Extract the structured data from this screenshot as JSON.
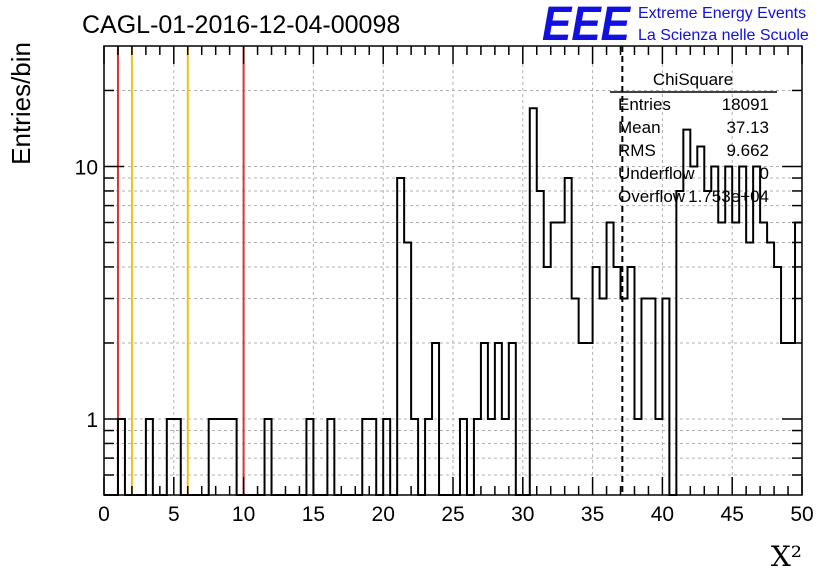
{
  "chart_data": {
    "type": "histogram",
    "title": "CAGL-01-2016-12-04-00098",
    "xlabel": "X²",
    "ylabel": "Entries/bin",
    "xlim": [
      0,
      50
    ],
    "ylim": [
      0.5,
      30
    ],
    "y_scale": "log",
    "grid": true,
    "bin_width": 0.5,
    "x_ticks": [
      "0",
      "5",
      "10",
      "15",
      "20",
      "25",
      "30",
      "35",
      "40",
      "45",
      "50"
    ],
    "y_ticks": [
      "1",
      "10"
    ],
    "bins": [
      [
        1.0,
        1
      ],
      [
        3.0,
        1
      ],
      [
        4.5,
        1
      ],
      [
        5.0,
        1
      ],
      [
        7.5,
        1
      ],
      [
        8.0,
        1
      ],
      [
        8.5,
        1
      ],
      [
        9.0,
        1
      ],
      [
        11.5,
        1
      ],
      [
        14.5,
        1
      ],
      [
        16.0,
        1
      ],
      [
        18.5,
        1
      ],
      [
        19.0,
        1
      ],
      [
        20.0,
        1
      ],
      [
        21.0,
        9
      ],
      [
        21.5,
        5
      ],
      [
        22.0,
        1
      ],
      [
        23.0,
        1
      ],
      [
        23.5,
        2
      ],
      [
        25.5,
        1
      ],
      [
        26.5,
        1
      ],
      [
        27.0,
        2
      ],
      [
        27.5,
        1
      ],
      [
        28.0,
        2
      ],
      [
        28.5,
        1
      ],
      [
        29.0,
        2
      ],
      [
        30.5,
        17
      ],
      [
        31.0,
        8
      ],
      [
        31.5,
        4
      ],
      [
        32.0,
        6
      ],
      [
        32.5,
        6
      ],
      [
        33.0,
        9
      ],
      [
        33.5,
        3
      ],
      [
        34.0,
        2
      ],
      [
        34.5,
        2
      ],
      [
        35.0,
        4
      ],
      [
        35.5,
        3
      ],
      [
        36.0,
        6
      ],
      [
        36.5,
        4
      ],
      [
        37.0,
        3
      ],
      [
        37.5,
        4
      ],
      [
        38.0,
        1
      ],
      [
        38.5,
        3
      ],
      [
        39.0,
        3
      ],
      [
        39.5,
        1
      ],
      [
        40.0,
        3
      ],
      [
        41.0,
        8
      ],
      [
        41.5,
        14
      ],
      [
        42.0,
        10
      ],
      [
        42.5,
        12
      ],
      [
        43.0,
        8
      ],
      [
        43.5,
        10
      ],
      [
        44.0,
        6
      ],
      [
        44.5,
        10
      ],
      [
        45.0,
        6
      ],
      [
        45.5,
        10
      ],
      [
        46.0,
        5
      ],
      [
        46.5,
        10
      ],
      [
        47.0,
        6
      ],
      [
        47.5,
        5
      ],
      [
        48.0,
        4
      ],
      [
        48.5,
        2
      ],
      [
        49.0,
        2
      ],
      [
        49.5,
        6
      ]
    ],
    "vertical_lines": [
      {
        "x": 1,
        "color": "#e03030",
        "style": "solid"
      },
      {
        "x": 2,
        "color": "#f0c020",
        "style": "solid"
      },
      {
        "x": 6,
        "color": "#f0c020",
        "style": "solid"
      },
      {
        "x": 10,
        "color": "#e03030",
        "style": "solid"
      },
      {
        "x": 37.13,
        "color": "#000000",
        "style": "dashed"
      }
    ],
    "stats_box": {
      "name": "ChiSquare",
      "rows": [
        {
          "label": "Entries",
          "value": "18091"
        },
        {
          "label": "Mean",
          "value": "37.13"
        },
        {
          "label": "RMS",
          "value": "9.662"
        },
        {
          "label": "Underflow",
          "value": "0"
        },
        {
          "label": "Overflow",
          "value": "1.753e+04"
        }
      ]
    },
    "line_color": "#000000"
  },
  "logo": {
    "mark": "EEE",
    "line1": "Extreme Energy Events",
    "line2": "La Scienza nelle Scuole",
    "color": "#1010e0"
  }
}
